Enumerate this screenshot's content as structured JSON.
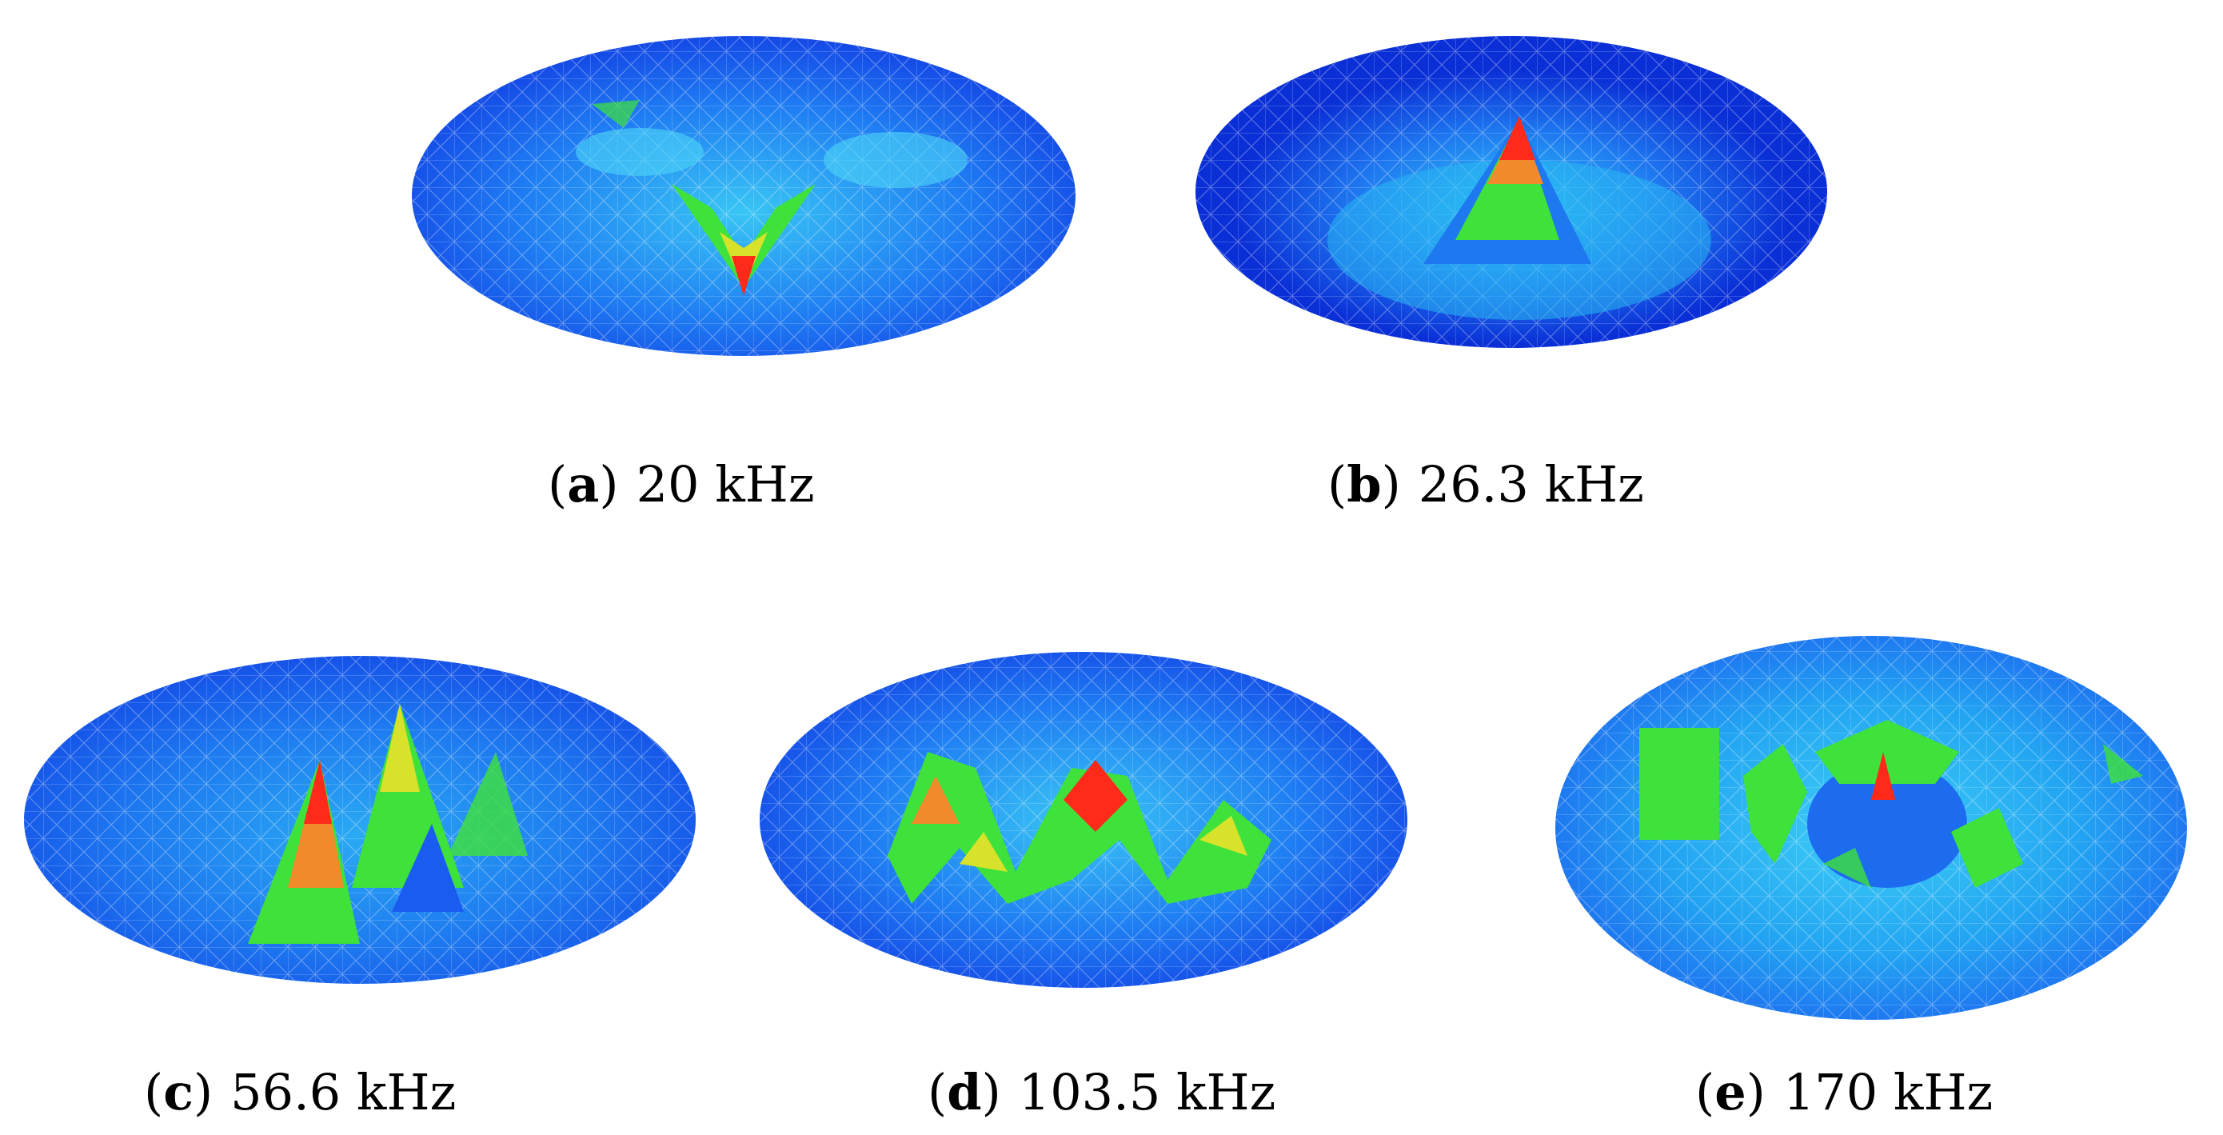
{
  "panels": [
    {
      "letter": "a",
      "label": "20 kHz"
    },
    {
      "letter": "b",
      "label": "26.3 kHz"
    },
    {
      "letter": "c",
      "label": "56.6 kHz"
    },
    {
      "letter": "d",
      "label": "103.5 kHz"
    },
    {
      "letter": "e",
      "label": "170 kHz"
    }
  ],
  "colors": {
    "deep_blue": "#0a2fd6",
    "blue": "#1a5cf0",
    "cyan": "#2ec8f5",
    "green": "#3ee23a",
    "yellow": "#d8e22a",
    "orange": "#f08a2a",
    "red": "#ff2a1a"
  }
}
